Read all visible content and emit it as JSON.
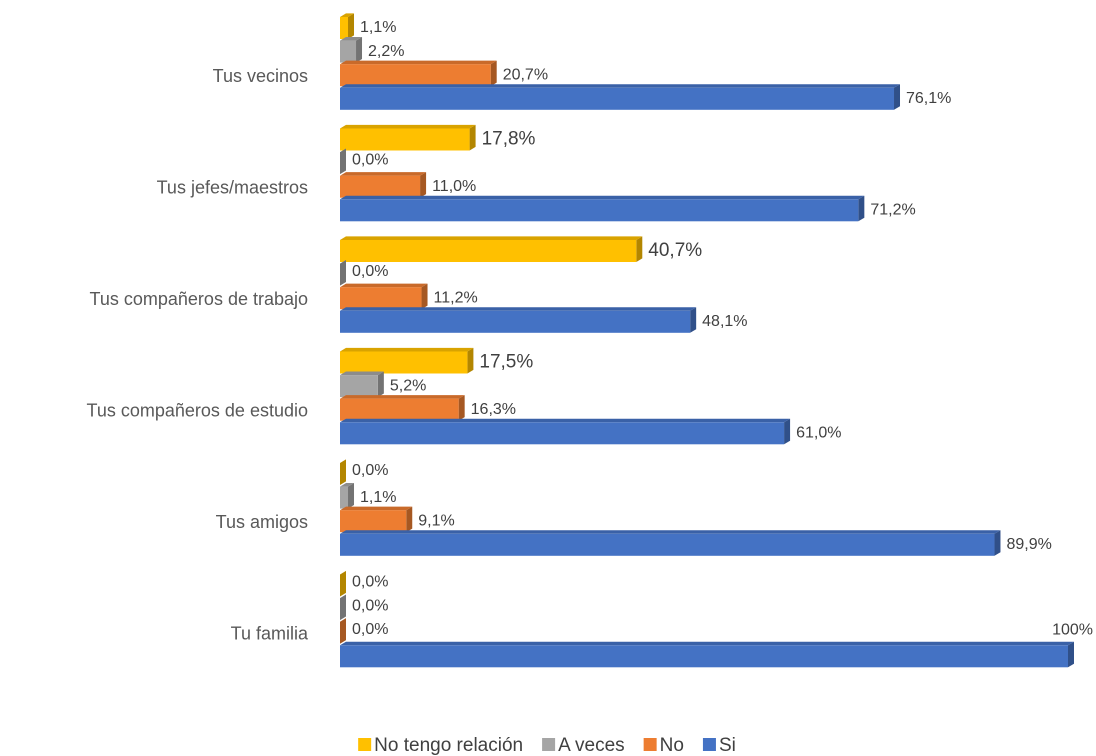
{
  "chart_data": {
    "type": "bar",
    "orientation": "horizontal",
    "categories": [
      "Tus vecinos",
      "Tus jefes/maestros",
      "Tus compañeros de trabajo",
      "Tus compañeros de estudio",
      "Tus amigos",
      "Tu familia"
    ],
    "xlim": [
      0,
      100
    ],
    "legend": "bottom",
    "series": [
      {
        "name": "No tengo relación",
        "color": "#ffc000",
        "values": [
          1.1,
          17.8,
          40.7,
          17.5,
          0.0,
          0.0
        ],
        "value_labels": [
          "1,1%",
          "17,8%",
          "40,7%",
          "17,5%",
          "0,0%",
          "0,0%"
        ]
      },
      {
        "name": "A veces",
        "color": "#a5a5a5",
        "values": [
          2.2,
          0.0,
          0.0,
          5.2,
          1.1,
          0.0
        ],
        "value_labels": [
          "2,2%",
          "0,0%",
          "0,0%",
          "5,2%",
          "1,1%",
          "0,0%"
        ]
      },
      {
        "name": "No",
        "color": "#ed7d31",
        "values": [
          20.7,
          11.0,
          11.2,
          16.3,
          9.1,
          0.0
        ],
        "value_labels": [
          "20,7%",
          "11,0%",
          "11,2%",
          "16,3%",
          "9,1%",
          "0,0%"
        ]
      },
      {
        "name": "Si",
        "color": "#4472c4",
        "values": [
          76.1,
          71.2,
          48.1,
          61.0,
          89.9,
          100
        ],
        "value_labels": [
          "76,1%",
          "71,2%",
          "48,1%",
          "61,0%",
          "89,9%",
          "100%"
        ]
      }
    ]
  }
}
